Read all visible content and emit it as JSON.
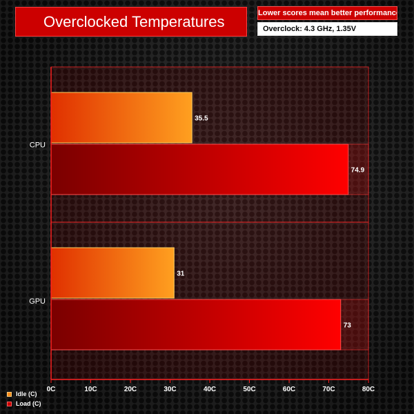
{
  "header": {
    "title": "Overclocked Temperatures",
    "note": "Lower scores mean better performance",
    "subnote": "Overclock: 4.3 GHz, 1.35V"
  },
  "colors": {
    "title_bg": "#cc0000",
    "idle_bar_start": "#e03000",
    "idle_bar_end": "#ffa020",
    "load_bar_start": "#7a0000",
    "load_bar_end": "#ff0000",
    "axis": "#ff2020"
  },
  "legend": {
    "idle_label": "Idle (C)",
    "load_label": "Load (C)"
  },
  "chart_data": {
    "type": "bar",
    "orientation": "horizontal",
    "categories": [
      "CPU",
      "GPU"
    ],
    "series": [
      {
        "name": "Idle (C)",
        "values": [
          35.5,
          31
        ],
        "value_labels": [
          "35.5",
          "31"
        ]
      },
      {
        "name": "Load (C)",
        "values": [
          74.9,
          73
        ],
        "value_labels": [
          "74.9",
          "73"
        ]
      }
    ],
    "xlim": [
      0,
      80
    ],
    "x_ticks": [
      "0C",
      "10C",
      "20C",
      "30C",
      "40C",
      "50C",
      "60C",
      "70C",
      "80C"
    ],
    "legend_position": "bottom-left",
    "grid": false
  }
}
